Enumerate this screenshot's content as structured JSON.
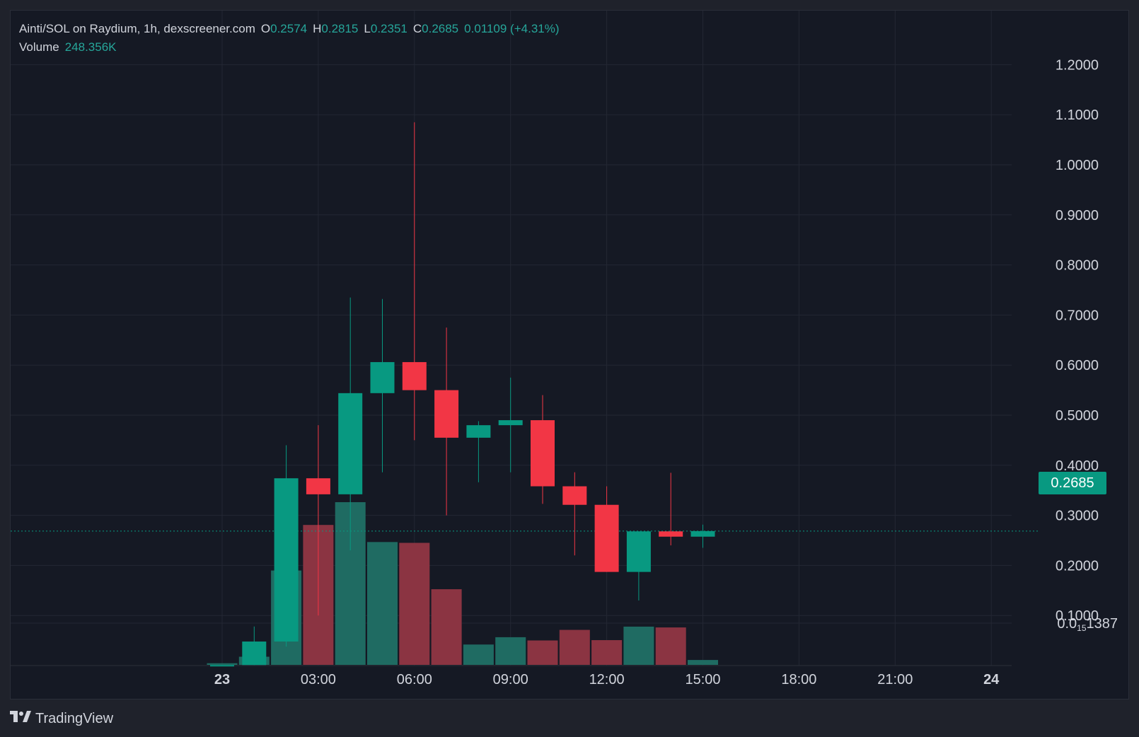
{
  "legend": {
    "symbol": "Ainti/SOL on Raydium, 1h, dexscreener.com",
    "open_label": "O",
    "open": "0.2574",
    "high_label": "H",
    "high": "0.2815",
    "low_label": "L",
    "low": "0.2351",
    "close_label": "C",
    "close": "0.2685",
    "change": "0.01109 (+4.31%)",
    "volume_label": "Volume",
    "volume": "248.356K"
  },
  "current_price": "0.2685",
  "branding": {
    "name": "TradingView"
  },
  "colors": {
    "up": "#089981",
    "down": "#f23645",
    "background": "#151924",
    "grid": "#232733",
    "text": "#d1d4dc"
  },
  "chart_data": {
    "type": "candlestick",
    "interval": "1h",
    "y_axis": {
      "range": [
        0.0,
        1.2
      ],
      "ticks": [
        1.2,
        1.1,
        1.0,
        0.9,
        0.8,
        0.7,
        0.6,
        0.5,
        0.4,
        0.3,
        0.2,
        0.1
      ],
      "tick_labels": [
        "1.2000",
        "1.1000",
        "1.0000",
        "0.9000",
        "0.8000",
        "0.7000",
        "0.6000",
        "0.5000",
        "0.4000",
        "0.3000",
        "0.2000",
        "0.1000"
      ],
      "bottom_label": {
        "prefix": "0.0",
        "subscript": "15",
        "suffix": "1387"
      }
    },
    "x_axis": {
      "range_hours": [
        -0.5,
        24.5
      ],
      "ticks": [
        {
          "hour": 0,
          "label": "23",
          "bold": true
        },
        {
          "hour": 3,
          "label": "03:00"
        },
        {
          "hour": 6,
          "label": "06:00"
        },
        {
          "hour": 9,
          "label": "09:00"
        },
        {
          "hour": 12,
          "label": "12:00"
        },
        {
          "hour": 15,
          "label": "15:00"
        },
        {
          "hour": 18,
          "label": "18:00"
        },
        {
          "hour": 21,
          "label": "21:00"
        },
        {
          "hour": 24,
          "label": "24",
          "bold": true
        }
      ]
    },
    "grid": true,
    "candles": [
      {
        "hour": 0,
        "open": 0.0011,
        "high": 0.0011,
        "low": 0.0011,
        "close": 0.0011
      },
      {
        "hour": 1,
        "open": 0.0011,
        "high": 0.078,
        "low": 0.0011,
        "close": 0.048
      },
      {
        "hour": 2,
        "open": 0.048,
        "high": 0.44,
        "low": 0.038,
        "close": 0.374
      },
      {
        "hour": 3,
        "open": 0.374,
        "high": 0.48,
        "low": 0.1,
        "close": 0.342
      },
      {
        "hour": 4,
        "open": 0.342,
        "high": 0.735,
        "low": 0.23,
        "close": 0.544
      },
      {
        "hour": 5,
        "open": 0.544,
        "high": 0.732,
        "low": 0.386,
        "close": 0.606
      },
      {
        "hour": 6,
        "open": 0.606,
        "high": 1.085,
        "low": 0.45,
        "close": 0.55
      },
      {
        "hour": 7,
        "open": 0.55,
        "high": 0.675,
        "low": 0.3,
        "close": 0.455
      },
      {
        "hour": 8,
        "open": 0.455,
        "high": 0.488,
        "low": 0.366,
        "close": 0.48
      },
      {
        "hour": 9,
        "open": 0.48,
        "high": 0.575,
        "low": 0.386,
        "close": 0.49
      },
      {
        "hour": 10,
        "open": 0.49,
        "high": 0.54,
        "low": 0.323,
        "close": 0.358
      },
      {
        "hour": 11,
        "open": 0.358,
        "high": 0.386,
        "low": 0.22,
        "close": 0.321
      },
      {
        "hour": 12,
        "open": 0.321,
        "high": 0.358,
        "low": 0.187,
        "close": 0.187
      },
      {
        "hour": 13,
        "open": 0.187,
        "high": 0.268,
        "low": 0.13,
        "close": 0.268
      },
      {
        "hour": 14,
        "open": 0.268,
        "high": 0.385,
        "low": 0.24,
        "close": 0.2574
      },
      {
        "hour": 15,
        "open": 0.2574,
        "high": 0.2815,
        "low": 0.2351,
        "close": 0.2685
      }
    ],
    "volume": [
      {
        "hour": 0,
        "value": 0.01,
        "direction": "up"
      },
      {
        "hour": 1,
        "value": 0.05,
        "direction": "up"
      },
      {
        "hour": 2,
        "value": 0.58,
        "direction": "up"
      },
      {
        "hour": 3,
        "value": 0.86,
        "direction": "down"
      },
      {
        "hour": 4,
        "value": 1.0,
        "direction": "up"
      },
      {
        "hour": 5,
        "value": 0.755,
        "direction": "up"
      },
      {
        "hour": 6,
        "value": 0.75,
        "direction": "down"
      },
      {
        "hour": 7,
        "value": 0.465,
        "direction": "down"
      },
      {
        "hour": 8,
        "value": 0.125,
        "direction": "up"
      },
      {
        "hour": 9,
        "value": 0.17,
        "direction": "up"
      },
      {
        "hour": 10,
        "value": 0.15,
        "direction": "down"
      },
      {
        "hour": 11,
        "value": 0.215,
        "direction": "down"
      },
      {
        "hour": 12,
        "value": 0.152,
        "direction": "down"
      },
      {
        "hour": 13,
        "value": 0.235,
        "direction": "up"
      },
      {
        "hour": 14,
        "value": 0.23,
        "direction": "down"
      },
      {
        "hour": 15,
        "value": 0.03,
        "direction": "up"
      }
    ]
  }
}
